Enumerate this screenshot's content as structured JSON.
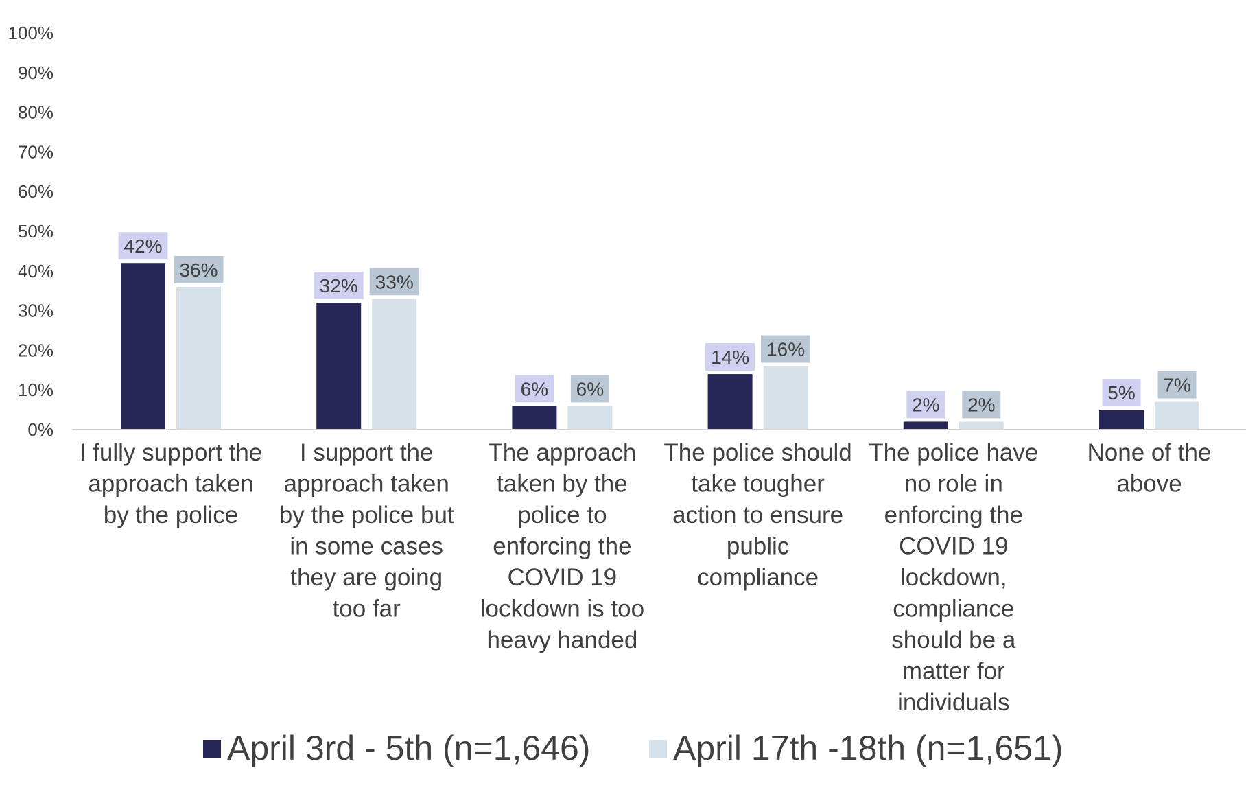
{
  "chart_data": {
    "type": "bar",
    "title": "",
    "xlabel": "",
    "ylabel": "",
    "ylim": [
      0,
      100
    ],
    "y_ticks": [
      "0%",
      "10%",
      "20%",
      "30%",
      "40%",
      "50%",
      "60%",
      "70%",
      "80%",
      "90%",
      "100%"
    ],
    "y_tick_values": [
      0,
      10,
      20,
      30,
      40,
      50,
      60,
      70,
      80,
      90,
      100
    ],
    "grid": false,
    "legend_position": "bottom",
    "categories": [
      "I fully support the approach taken by the police",
      "I support the approach taken by the police but in some cases they are going too far",
      "The approach taken by the police to enforcing the COVID 19 lockdown is too heavy handed",
      "The police should take tougher action to ensure public compliance",
      "The police have no role in enforcing the COVID 19 lockdown, compliance should be a matter for individuals",
      "None of the above"
    ],
    "category_lines": [
      [
        "I fully support the",
        "approach taken",
        "by the police"
      ],
      [
        "I support the",
        "approach taken",
        "by the police but",
        "in some cases",
        "they are going",
        "too far"
      ],
      [
        "The approach",
        "taken by the",
        "police to",
        "enforcing the",
        "COVID 19",
        "lockdown is too",
        "heavy handed"
      ],
      [
        "The police should",
        "take tougher",
        "action to ensure",
        "public",
        "compliance"
      ],
      [
        "The police have",
        "no role in",
        "enforcing the",
        "COVID 19",
        "lockdown,",
        "compliance",
        "should be a",
        "matter for",
        "individuals"
      ],
      [
        "None of the",
        "above"
      ]
    ],
    "series": [
      {
        "name": "April 3rd - 5th (n=1,646)",
        "color": "#262657",
        "label_bg": "#d0d0f0",
        "values": [
          42,
          32,
          6,
          14,
          2,
          5
        ],
        "labels": [
          "42%",
          "32%",
          "6%",
          "14%",
          "2%",
          "5%"
        ]
      },
      {
        "name": "April 17th -18th (n=1,651)",
        "color": "#d6e1e9",
        "label_bg": "#b9c8d4",
        "values": [
          36,
          33,
          6,
          16,
          2,
          7
        ],
        "labels": [
          "36%",
          "33%",
          "6%",
          "16%",
          "2%",
          "7%"
        ]
      }
    ]
  },
  "colors": {
    "axis_line": "#d0d0d0",
    "text": "#404040"
  }
}
